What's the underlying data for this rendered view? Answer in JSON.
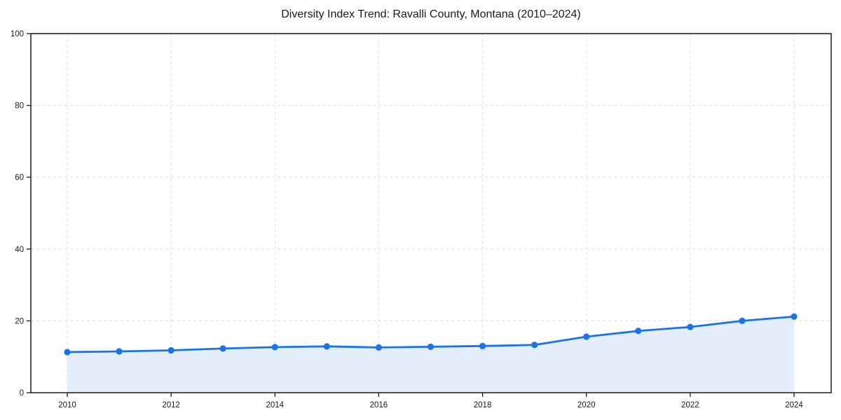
{
  "title": "Diversity Index Trend: Ravalli County, Montana (2010–2024)",
  "chart_data": {
    "type": "area",
    "title": "Diversity Index Trend: Ravalli County, Montana (2010–2024)",
    "x": [
      2010,
      2011,
      2012,
      2013,
      2014,
      2015,
      2016,
      2017,
      2018,
      2019,
      2020,
      2021,
      2022,
      2023,
      2024
    ],
    "series": [
      {
        "name": "Diversity Index",
        "values": [
          11.3,
          11.5,
          11.8,
          12.3,
          12.7,
          12.9,
          12.6,
          12.8,
          13.0,
          13.3,
          15.6,
          17.2,
          18.3,
          20.0,
          21.2
        ]
      }
    ],
    "xlabel": "",
    "ylabel": "",
    "ylim": [
      0,
      100
    ],
    "yticks": [
      0,
      20,
      40,
      60,
      80,
      100
    ],
    "xticks": [
      2010,
      2012,
      2014,
      2016,
      2018,
      2020,
      2022,
      2024
    ],
    "grid": true,
    "grid_style": "dashed",
    "legend": false,
    "marker": "circle",
    "colors": {
      "line": "#1a73e8",
      "fill": "#e4edfc",
      "grid": "#e0e0e0",
      "spine": "#1a1a1a",
      "text": "#1a1a1a",
      "background": "#ffffff"
    }
  }
}
